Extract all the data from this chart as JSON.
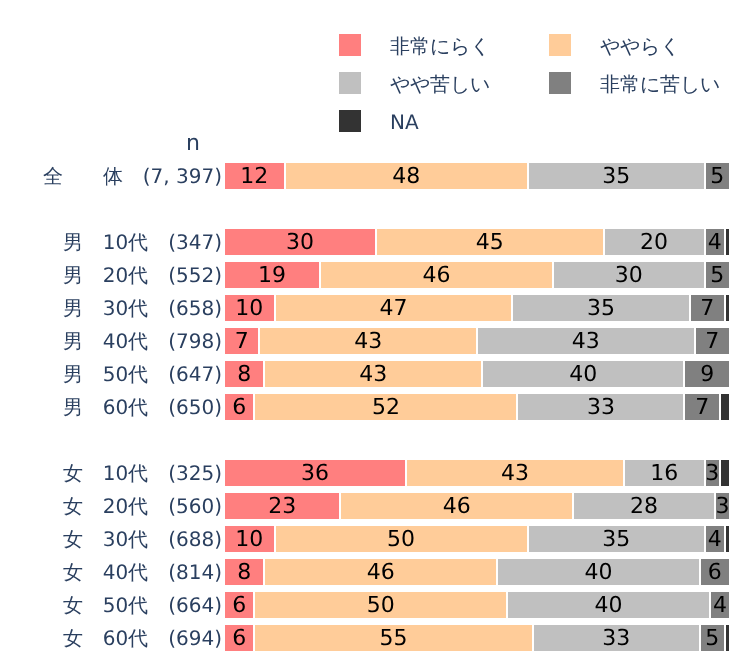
{
  "chart_data": {
    "type": "bar",
    "orientation": "horizontal",
    "stacked": true,
    "legend": "top",
    "tick_labels": "y",
    "xlim": [
      0,
      100
    ],
    "categories": [
      "全　　体　(7, 397)",
      null,
      "男　10代　(347)",
      "男　20代　(552)",
      "男　30代　(658)",
      "男　40代　(798)",
      "男　50代　(647)",
      "男　60代　(650)",
      null,
      "女　10代　(325)",
      "女　20代　(560)",
      "女　30代　(688)",
      "女　40代　(814)",
      "女　50代　(664)",
      "女　60代　(694)"
    ],
    "annotations": [
      "n"
    ],
    "series": [
      {
        "name": "非常にらく",
        "color": "#ff7f7f",
        "values": [
          12,
          null,
          30,
          19,
          10,
          7,
          8,
          6,
          null,
          36,
          23,
          10,
          8,
          6,
          6
        ],
        "value_labels": [
          "12",
          null,
          "30",
          "19",
          "10",
          "7",
          "8",
          "6",
          null,
          "36",
          "23",
          "10",
          "8",
          "6",
          "6"
        ]
      },
      {
        "name": "ややらく",
        "color": "#ffcc99",
        "values": [
          48,
          null,
          45,
          46,
          47,
          43,
          43,
          52,
          null,
          43,
          46,
          50,
          46,
          50,
          55
        ],
        "value_labels": [
          "48",
          null,
          "45",
          "46",
          "47",
          "43",
          "43",
          "52",
          null,
          "43",
          "46",
          "50",
          "46",
          "50",
          "55"
        ]
      },
      {
        "name": "やや苦しい",
        "color": "#c0c0c0",
        "values": [
          35,
          null,
          20,
          30,
          35,
          43,
          40,
          33,
          null,
          16,
          28,
          35,
          40,
          40,
          33
        ],
        "value_labels": [
          "35",
          null,
          "20",
          "30",
          "35",
          "43",
          "40",
          "33",
          null,
          "16",
          "28",
          "35",
          "40",
          "40",
          "33"
        ]
      },
      {
        "name": "非常に苦しい",
        "color": "#808080",
        "values": [
          5,
          null,
          4,
          5,
          7,
          7,
          9,
          7,
          null,
          3,
          3,
          4,
          6,
          4,
          5
        ],
        "value_labels": [
          "5",
          null,
          "4",
          "5",
          "7",
          "7",
          "9",
          "7",
          null,
          "3",
          "3",
          "4",
          "6",
          "4",
          "5"
        ]
      },
      {
        "name": "NA",
        "color": "#333333",
        "values": [
          null,
          null,
          1,
          null,
          1,
          null,
          null,
          2,
          null,
          2,
          null,
          1,
          null,
          null,
          1
        ]
      }
    ]
  }
}
